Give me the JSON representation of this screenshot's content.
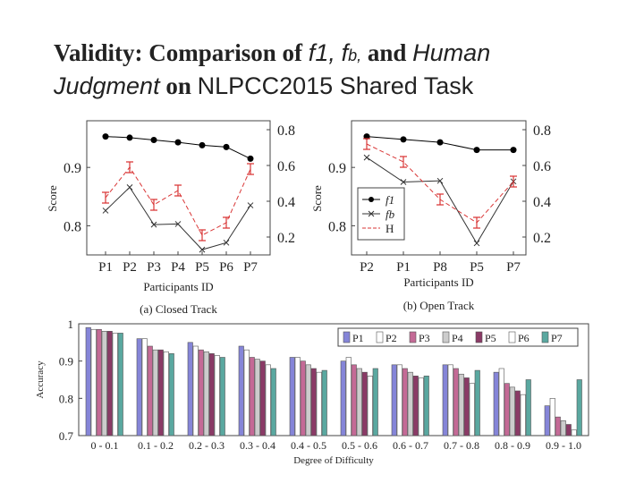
{
  "slide": {
    "title_1": "Validity:",
    "title_2": "Comparison of",
    "title_3": "f",
    "title_4": "1,",
    "title_5": "f",
    "title_6": "b,",
    "title_7": "and",
    "title_8": "Human",
    "title_9": "Judgment",
    "title_10": "on",
    "title_11": "NLPCC2015 Shared Task"
  },
  "chart_data": [
    {
      "type": "line",
      "caption": "(a) Closed Track",
      "xlabel": "Participants ID",
      "ylabel_left": "Score",
      "categories": [
        "P1",
        "P2",
        "P3",
        "P4",
        "P5",
        "P6",
        "P7"
      ],
      "left_ticks": [
        "0.9",
        "0.8"
      ],
      "right_ticks": [
        "0.8",
        "0.6",
        "0.4",
        "0.2"
      ],
      "series": [
        {
          "name": "f1",
          "axis": "left",
          "marker": "dot",
          "color": "#000000",
          "values": [
            0.953,
            0.951,
            0.947,
            0.943,
            0.938,
            0.935,
            0.915
          ]
        },
        {
          "name": "fb",
          "axis": "left",
          "marker": "x",
          "color": "#333333",
          "values": [
            0.826,
            0.866,
            0.802,
            0.803,
            0.759,
            0.771,
            0.835
          ]
        },
        {
          "name": "H",
          "axis": "right",
          "marker": "errorbar",
          "color": "#d93636",
          "values": [
            0.42,
            0.59,
            0.38,
            0.46,
            0.21,
            0.28,
            0.58
          ]
        }
      ]
    },
    {
      "type": "line",
      "caption": "(b) Open Track",
      "xlabel": "Participants ID",
      "ylabel_left": "Score",
      "categories": [
        "P2",
        "P1",
        "P8",
        "P5",
        "P7"
      ],
      "left_ticks": [
        "0.9",
        "0.8"
      ],
      "right_ticks": [
        "0.8",
        "0.6",
        "0.4",
        "0.2"
      ],
      "legend": [
        "f1",
        "fb",
        "H"
      ],
      "series": [
        {
          "name": "f1",
          "axis": "left",
          "marker": "dot",
          "color": "#000000",
          "values": [
            0.953,
            0.948,
            0.943,
            0.93,
            0.93
          ]
        },
        {
          "name": "fb",
          "axis": "left",
          "marker": "x",
          "color": "#333333",
          "values": [
            0.917,
            0.875,
            0.877,
            0.77,
            0.876
          ]
        },
        {
          "name": "H",
          "axis": "right",
          "marker": "errorbar",
          "color": "#d93636",
          "values": [
            0.72,
            0.62,
            0.41,
            0.28,
            0.51
          ]
        }
      ]
    },
    {
      "type": "bar",
      "xlabel": "Degree of Difficulty",
      "ylabel": "Accuracy",
      "ylim": [
        0.7,
        1.0
      ],
      "y_ticks": [
        "1",
        "0.9",
        "0.8",
        "0.7"
      ],
      "categories": [
        "0 - 0.1",
        "0.1 - 0.2",
        "0.2 - 0.3",
        "0.3 - 0.4",
        "0.4 - 0.5",
        "0.5 - 0.6",
        "0.6 - 0.7",
        "0.7 - 0.8",
        "0.8 - 0.9",
        "0.9 - 1.0"
      ],
      "series": [
        {
          "name": "P1",
          "color": "#8585d8",
          "values": [
            0.99,
            0.96,
            0.95,
            0.94,
            0.91,
            0.9,
            0.89,
            0.89,
            0.87,
            0.78
          ]
        },
        {
          "name": "P2",
          "color": "#ffffff",
          "values": [
            0.985,
            0.96,
            0.94,
            0.93,
            0.91,
            0.91,
            0.89,
            0.89,
            0.88,
            0.8
          ]
        },
        {
          "name": "P3",
          "color": "#c46a96",
          "values": [
            0.985,
            0.94,
            0.93,
            0.91,
            0.9,
            0.89,
            0.88,
            0.88,
            0.84,
            0.75
          ]
        },
        {
          "name": "P4",
          "color": "#cccccc",
          "values": [
            0.98,
            0.93,
            0.925,
            0.905,
            0.89,
            0.88,
            0.87,
            0.865,
            0.83,
            0.74
          ]
        },
        {
          "name": "P5",
          "color": "#8a3a66",
          "values": [
            0.98,
            0.93,
            0.92,
            0.9,
            0.88,
            0.87,
            0.86,
            0.855,
            0.82,
            0.73
          ]
        },
        {
          "name": "P6",
          "color": "#ffffff",
          "values": [
            0.975,
            0.925,
            0.915,
            0.89,
            0.87,
            0.86,
            0.855,
            0.84,
            0.81,
            0.715
          ]
        },
        {
          "name": "P7",
          "color": "#5aa8a0",
          "values": [
            0.975,
            0.92,
            0.91,
            0.88,
            0.875,
            0.88,
            0.86,
            0.875,
            0.85,
            0.85
          ]
        }
      ]
    }
  ]
}
